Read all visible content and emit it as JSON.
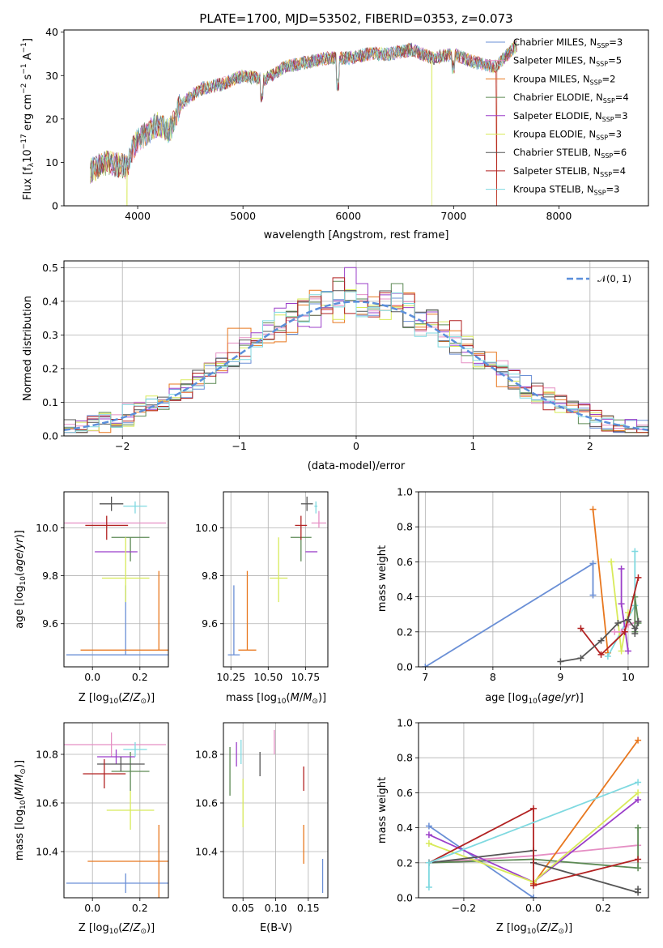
{
  "chart_data": [
    {
      "id": "spectrum",
      "type": "line",
      "title": "PLATE=1700, MJD=53502, FIBERID=0353, z=0.073",
      "xlabel": "wavelength [Angstrom, rest frame]",
      "ylabel": "Flux [f_λ 10^-17 erg cm^-2 s^-1 A^-1]",
      "xlim": [
        3300,
        8850
      ],
      "ylim": [
        0,
        40.5
      ],
      "xticks": [
        4000,
        5000,
        6000,
        7000,
        8000
      ],
      "yticks": [
        0,
        10,
        20,
        30,
        40
      ],
      "spectrum_profile": {
        "x": [
          3550,
          3700,
          3900,
          3950,
          4000,
          4100,
          4200,
          4300,
          4400,
          4600,
          4800,
          5000,
          5200,
          5400,
          5600,
          5800,
          6000,
          6200,
          6400,
          6600,
          6800,
          7000,
          7200,
          7400,
          7600
        ],
        "y": [
          8,
          10,
          9,
          13,
          15,
          17,
          19,
          17,
          23,
          27,
          28,
          30,
          29,
          32,
          33,
          34,
          34,
          35,
          35,
          36,
          34,
          35,
          33,
          32,
          37
        ]
      },
      "legend": [
        {
          "label": "Chabrier MILES, N",
          "sub": "SSP",
          "suffix": "=3",
          "color": "#6a8fd6"
        },
        {
          "label": "Salpeter MILES, N",
          "sub": "SSP",
          "suffix": "=5",
          "color": "#e58fc4"
        },
        {
          "label": "Kroupa MILES, N",
          "sub": "SSP",
          "suffix": "=2",
          "color": "#e8771e"
        },
        {
          "label": "Chabrier ELODIE, N",
          "sub": "SSP",
          "suffix": "=4",
          "color": "#5d8a55"
        },
        {
          "label": "Salpeter ELODIE, N",
          "sub": "SSP",
          "suffix": "=3",
          "color": "#9b3fc9"
        },
        {
          "label": "Kroupa ELODIE, N",
          "sub": "SSP",
          "suffix": "=3",
          "color": "#d8ea5a"
        },
        {
          "label": "Chabrier STELIB, N",
          "sub": "SSP",
          "suffix": "=6",
          "color": "#555555"
        },
        {
          "label": "Salpeter STELIB, N",
          "sub": "SSP",
          "suffix": "=4",
          "color": "#b22222"
        },
        {
          "label": "Kroupa STELIB, N",
          "sub": "SSP",
          "suffix": "=3",
          "color": "#7fd9e0"
        }
      ]
    },
    {
      "id": "residuals",
      "type": "line",
      "xlabel": "(data-model)/error",
      "ylabel": "Normed distribution",
      "xlim": [
        -2.5,
        2.5
      ],
      "ylim": [
        0,
        0.52
      ],
      "xticks": [
        -2,
        -1,
        0,
        1,
        2
      ],
      "yticks": [
        0.0,
        0.1,
        0.2,
        0.3,
        0.4,
        0.5
      ],
      "legend": [
        {
          "label": "𝒩(0, 1)",
          "color": "#5b8fdb",
          "style": "dashed"
        }
      ],
      "gaussian": {
        "mean": 0,
        "sigma": 1
      }
    },
    {
      "id": "age_vs_Z",
      "type": "scatter",
      "xlabel": "Z [log10(Z/Z⊙)]",
      "ylabel": "age [log10(age/yr)]",
      "xlim": [
        -0.12,
        0.32
      ],
      "ylim": [
        9.42,
        10.15
      ],
      "xticks": [
        0.0,
        0.2
      ],
      "yticks": [
        9.6,
        9.8,
        10.0
      ],
      "points": [
        {
          "color": "#6a8fd6",
          "x": 0.14,
          "y": 9.47,
          "xerr": 0.25,
          "yerr_lo": 0.0,
          "yerr_hi": 0.29
        },
        {
          "color": "#e58fc4",
          "x": 0.08,
          "y": 10.02,
          "xerr": 0.23,
          "yerr_lo": 0.0,
          "yerr_hi": 0.0
        },
        {
          "color": "#e8771e",
          "x": 0.28,
          "y": 9.49,
          "xerr": 0.33,
          "yerr_lo": 0.0,
          "yerr_hi": 0.33
        },
        {
          "color": "#5d8a55",
          "x": 0.16,
          "y": 9.96,
          "xerr": 0.08,
          "yerr_lo": 0.1,
          "yerr_hi": 0.0
        },
        {
          "color": "#9b3fc9",
          "x": 0.1,
          "y": 9.9,
          "xerr": 0.09,
          "yerr_lo": 0.0,
          "yerr_hi": 0.0
        },
        {
          "color": "#d8ea5a",
          "x": 0.14,
          "y": 9.79,
          "xerr": 0.1,
          "yerr_lo": 0.1,
          "yerr_hi": 0.17
        },
        {
          "color": "#555555",
          "x": 0.08,
          "y": 10.1,
          "xerr": 0.05,
          "yerr_lo": 0.03,
          "yerr_hi": 0.03
        },
        {
          "color": "#b22222",
          "x": 0.06,
          "y": 10.01,
          "xerr": 0.09,
          "yerr_lo": 0.06,
          "yerr_hi": 0.04
        },
        {
          "color": "#7fd9e0",
          "x": 0.18,
          "y": 10.09,
          "xerr": 0.05,
          "yerr_lo": 0.03,
          "yerr_hi": 0.02
        }
      ]
    },
    {
      "id": "age_vs_mass",
      "type": "scatter",
      "xlabel": "mass [log10(M/M⊙)]",
      "ylabel": "",
      "xlim": [
        10.2,
        10.9
      ],
      "ylim": [
        9.42,
        10.15
      ],
      "xticks": [
        10.25,
        10.5,
        10.75
      ],
      "yticks": [
        9.6,
        9.8,
        10.0
      ],
      "points": [
        {
          "color": "#6a8fd6",
          "x": 10.27,
          "y": 9.47,
          "xerr": 0.04,
          "yerr_lo": 0.0,
          "yerr_hi": 0.29
        },
        {
          "color": "#e8771e",
          "x": 10.36,
          "y": 9.49,
          "xerr": 0.06,
          "yerr_lo": 0.0,
          "yerr_hi": 0.33
        },
        {
          "color": "#d8ea5a",
          "x": 10.57,
          "y": 9.79,
          "xerr": 0.06,
          "yerr_lo": 0.1,
          "yerr_hi": 0.17
        },
        {
          "color": "#5d8a55",
          "x": 10.72,
          "y": 9.96,
          "xerr": 0.07,
          "yerr_lo": 0.1,
          "yerr_hi": 0.0
        },
        {
          "color": "#b22222",
          "x": 10.72,
          "y": 10.01,
          "xerr": 0.04,
          "yerr_lo": 0.06,
          "yerr_hi": 0.04
        },
        {
          "color": "#9b3fc9",
          "x": 10.79,
          "y": 9.9,
          "xerr": 0.04,
          "yerr_lo": 0.0,
          "yerr_hi": 0.0
        },
        {
          "color": "#555555",
          "x": 10.76,
          "y": 10.1,
          "xerr": 0.04,
          "yerr_lo": 0.03,
          "yerr_hi": 0.03
        },
        {
          "color": "#e58fc4",
          "x": 10.84,
          "y": 10.02,
          "xerr": 0.05,
          "yerr_lo": 0.02,
          "yerr_hi": 0.05
        },
        {
          "color": "#7fd9e0",
          "x": 10.82,
          "y": 10.09,
          "xerr": 0.01,
          "yerr_lo": 0.03,
          "yerr_hi": 0.02
        }
      ]
    },
    {
      "id": "massweight_vs_age",
      "type": "line",
      "xlabel": "age [log10(age/yr)]",
      "ylabel": "mass weight",
      "xlim": [
        6.9,
        10.3
      ],
      "ylim": [
        0,
        1
      ],
      "xticks": [
        7,
        8,
        9,
        10
      ],
      "yticks": [
        0.0,
        0.2,
        0.4,
        0.6,
        0.8,
        1.0
      ],
      "series": [
        {
          "color": "#6a8fd6",
          "x": [
            7.0,
            9.48,
            9.48
          ],
          "y": [
            0.0,
            0.59,
            0.41
          ]
        },
        {
          "color": "#e8771e",
          "x": [
            9.48,
            9.7
          ],
          "y": [
            0.9,
            0.08
          ]
        },
        {
          "color": "#7fd9e0",
          "x": [
            9.7,
            10.1,
            10.1
          ],
          "y": [
            0.06,
            0.35,
            0.66
          ]
        },
        {
          "color": "#d8ea5a",
          "x": [
            9.75,
            9.9,
            10.0
          ],
          "y": [
            0.6,
            0.09,
            0.31
          ]
        },
        {
          "color": "#9b3fc9",
          "x": [
            9.9,
            9.9,
            10.0
          ],
          "y": [
            0.56,
            0.36,
            0.09
          ]
        },
        {
          "color": "#e58fc4",
          "x": [
            9.8,
            9.9,
            10.0,
            10.15
          ],
          "y": [
            0.2,
            0.2,
            0.24,
            0.26
          ]
        },
        {
          "color": "#5d8a55",
          "x": [
            10.1,
            10.1,
            10.15
          ],
          "y": [
            0.2,
            0.4,
            0.25
          ]
        },
        {
          "color": "#b22222",
          "x": [
            9.3,
            9.6,
            9.95,
            10.15
          ],
          "y": [
            0.22,
            0.07,
            0.2,
            0.51
          ]
        },
        {
          "color": "#555555",
          "x": [
            9.0,
            9.3,
            9.6,
            9.85,
            10.0,
            10.1,
            10.1,
            10.15
          ],
          "y": [
            0.03,
            0.05,
            0.15,
            0.25,
            0.27,
            0.22,
            0.19,
            0.26
          ]
        }
      ]
    },
    {
      "id": "mass_vs_Z",
      "type": "scatter",
      "xlabel": "Z [log10(Z/Z⊙)]",
      "ylabel": "mass [log10(M/M⊙)]",
      "xlim": [
        -0.12,
        0.32
      ],
      "ylim": [
        10.21,
        10.93
      ],
      "xticks": [
        0.0,
        0.2
      ],
      "yticks": [
        10.4,
        10.6,
        10.8
      ],
      "points": [
        {
          "color": "#6a8fd6",
          "x": 0.14,
          "y": 10.27,
          "xerr": 0.25,
          "yerr": 0.04
        },
        {
          "color": "#e58fc4",
          "x": 0.08,
          "y": 10.84,
          "xerr": 0.23,
          "yerr": 0.05
        },
        {
          "color": "#e8771e",
          "x": 0.28,
          "y": 10.36,
          "xerr": 0.3,
          "yerr": 0.15
        },
        {
          "color": "#5d8a55",
          "x": 0.16,
          "y": 10.73,
          "xerr": 0.08,
          "yerr": 0.08
        },
        {
          "color": "#9b3fc9",
          "x": 0.1,
          "y": 10.79,
          "xerr": 0.08,
          "yerr": 0.03
        },
        {
          "color": "#d8ea5a",
          "x": 0.16,
          "y": 10.57,
          "xerr": 0.1,
          "yerr": 0.08
        },
        {
          "color": "#555555",
          "x": 0.12,
          "y": 10.76,
          "xerr": 0.1,
          "yerr": 0.03
        },
        {
          "color": "#b22222",
          "x": 0.05,
          "y": 10.72,
          "xerr": 0.09,
          "yerr": 0.06
        },
        {
          "color": "#7fd9e0",
          "x": 0.18,
          "y": 10.82,
          "xerr": 0.05,
          "yerr": 0.03
        }
      ]
    },
    {
      "id": "mass_vs_ebv",
      "type": "scatter",
      "xlabel": "E(B-V)",
      "ylabel": "",
      "xlim": [
        0.02,
        0.18
      ],
      "ylim": [
        10.21,
        10.93
      ],
      "xticks": [
        0.05,
        0.1,
        0.15
      ],
      "yticks": [
        10.4,
        10.6,
        10.8
      ],
      "points": [
        {
          "color": "#6a8fd6",
          "x": 0.172,
          "y": 10.3,
          "yerr": 0.07
        },
        {
          "color": "#e58fc4",
          "x": 0.098,
          "y": 10.85,
          "yerr": 0.05
        },
        {
          "color": "#e8771e",
          "x": 0.143,
          "y": 10.43,
          "yerr": 0.08
        },
        {
          "color": "#5d8a55",
          "x": 0.03,
          "y": 10.73,
          "yerr": 0.1
        },
        {
          "color": "#9b3fc9",
          "x": 0.04,
          "y": 10.8,
          "yerr": 0.05
        },
        {
          "color": "#d8ea5a",
          "x": 0.05,
          "y": 10.6,
          "yerr": 0.1
        },
        {
          "color": "#555555",
          "x": 0.076,
          "y": 10.76,
          "yerr": 0.05
        },
        {
          "color": "#b22222",
          "x": 0.143,
          "y": 10.7,
          "yerr": 0.05
        },
        {
          "color": "#7fd9e0",
          "x": 0.047,
          "y": 10.81,
          "yerr": 0.05
        }
      ]
    },
    {
      "id": "massweight_vs_Z",
      "type": "line",
      "xlabel": "Z [log10(Z/Z⊙)]",
      "ylabel": "mass weight",
      "xlim": [
        -0.33,
        0.33
      ],
      "ylim": [
        0,
        1
      ],
      "xticks": [
        -0.2,
        0.0,
        0.2
      ],
      "yticks": [
        0.0,
        0.2,
        0.4,
        0.6,
        0.8,
        1.0
      ],
      "series": [
        {
          "color": "#6a8fd6",
          "x": [
            -0.3,
            0.0,
            0.0
          ],
          "y": [
            0.41,
            0.0,
            0.0
          ]
        },
        {
          "color": "#e58fc4",
          "x": [
            -0.3,
            0.0,
            0.3
          ],
          "y": [
            0.2,
            0.24,
            0.3
          ]
        },
        {
          "color": "#e8771e",
          "x": [
            0.0,
            0.3
          ],
          "y": [
            0.08,
            0.9
          ]
        },
        {
          "color": "#5d8a55",
          "x": [
            -0.3,
            0.0,
            0.3,
            0.3
          ],
          "y": [
            0.2,
            0.22,
            0.17,
            0.4
          ]
        },
        {
          "color": "#9b3fc9",
          "x": [
            -0.3,
            0.0,
            0.3
          ],
          "y": [
            0.36,
            0.09,
            0.56
          ]
        },
        {
          "color": "#d8ea5a",
          "x": [
            -0.3,
            0.0,
            0.3
          ],
          "y": [
            0.31,
            0.09,
            0.6
          ]
        },
        {
          "color": "#555555",
          "x": [
            -0.3,
            0.0,
            0.0,
            0.3,
            0.3
          ],
          "y": [
            0.2,
            0.27,
            0.2,
            0.03,
            0.05
          ]
        },
        {
          "color": "#b22222",
          "x": [
            -0.3,
            0.0,
            0.0,
            0.3
          ],
          "y": [
            0.2,
            0.51,
            0.07,
            0.22
          ]
        },
        {
          "color": "#7fd9e0",
          "x": [
            -0.3,
            -0.3,
            0.3
          ],
          "y": [
            0.06,
            0.2,
            0.66
          ]
        }
      ]
    }
  ]
}
